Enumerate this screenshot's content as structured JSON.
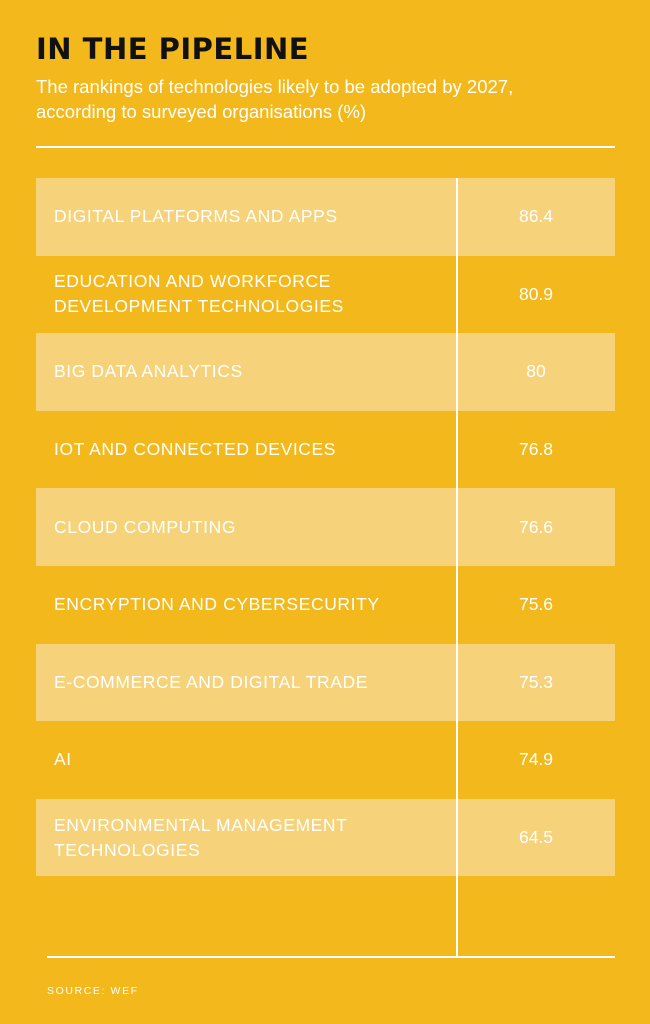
{
  "header": {
    "title": "IN THE PIPELINE",
    "subtitle": "The rankings of technologies likely to be adopted by 2027, according to surveyed organisations (%)"
  },
  "footer": {
    "source": "SOURCE: WEF"
  },
  "colors": {
    "background": "#f2b81c",
    "shaded_row": "#f6d37a",
    "title": "#111111",
    "text": "#ffffff"
  },
  "chart_data": {
    "type": "table",
    "title": "IN THE PIPELINE",
    "subtitle": "The rankings of technologies likely to be adopted by 2027, according to surveyed organisations (%)",
    "rows": [
      {
        "label": "DIGITAL PLATFORMS AND APPS",
        "value": "86.4"
      },
      {
        "label": "EDUCATION AND WORKFORCE DEVELOPMENT TECHNOLOGIES",
        "value": "80.9"
      },
      {
        "label": "BIG DATA ANALYTICS",
        "value": "80"
      },
      {
        "label": "IOT AND CONNECTED DEVICES",
        "value": "76.8"
      },
      {
        "label": "CLOUD COMPUTING",
        "value": "76.6"
      },
      {
        "label": "ENCRYPTION AND CYBERSECURITY",
        "value": "75.6"
      },
      {
        "label": "E-COMMERCE AND DIGITAL TRADE",
        "value": "75.3"
      },
      {
        "label": "AI",
        "value": "74.9"
      },
      {
        "label": "ENVIRONMENTAL MANAGEMENT TECHNOLOGIES",
        "value": "64.5"
      }
    ],
    "source": "SOURCE: WEF"
  }
}
